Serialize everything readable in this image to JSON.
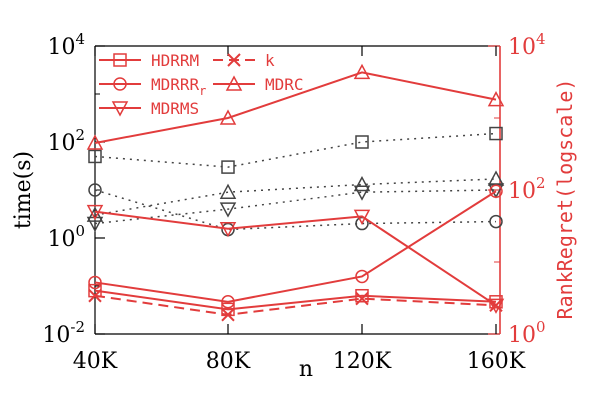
{
  "chart_data": {
    "type": "line",
    "x": [
      "40K",
      "80K",
      "120K",
      "160K"
    ],
    "xlabel": "n",
    "ylabel_left": "time(s)",
    "ylabel_right": "RankRegret(logscale)",
    "yscale_left": "log",
    "yscale_right": "log",
    "ylim_left": [
      0.01,
      10000
    ],
    "ylim_right": [
      1,
      10000
    ],
    "yticks_left": [
      {
        "base": "10",
        "exp": "-2",
        "value": 0.01
      },
      {
        "base": "10",
        "exp": "0",
        "value": 1
      },
      {
        "base": "10",
        "exp": "2",
        "value": 100
      },
      {
        "base": "10",
        "exp": "4",
        "value": 10000
      }
    ],
    "yticks_right": [
      {
        "base": "10",
        "exp": "0",
        "value": 1
      },
      {
        "base": "10",
        "exp": "2",
        "value": 100
      },
      {
        "base": "10",
        "exp": "4",
        "value": 10000
      }
    ],
    "grid": false,
    "legend_position": "top-left",
    "legend": [
      {
        "label": "HDRRM",
        "marker": "square",
        "line": "solid"
      },
      {
        "label": "k",
        "marker": "x",
        "line": "dashed"
      },
      {
        "label": "MDRRR",
        "sub": "r",
        "marker": "circle",
        "line": "solid"
      },
      {
        "label": "MDRC",
        "marker": "triangle-up",
        "line": "solid"
      },
      {
        "label": "MDRMS",
        "marker": "triangle-down",
        "line": "solid"
      }
    ],
    "series_time": [
      {
        "name": "HDRRM",
        "marker": "square",
        "values": [
          50,
          30,
          100,
          150
        ]
      },
      {
        "name": "MDRRR",
        "marker": "circle",
        "values": [
          10,
          1.5,
          2,
          2.2
        ]
      },
      {
        "name": "MDRC",
        "marker": "triangle-up",
        "values": [
          3,
          9,
          13,
          17
        ]
      },
      {
        "name": "MDRMS",
        "marker": "triangle-down",
        "values": [
          2,
          4,
          9,
          10
        ]
      }
    ],
    "series_regret": [
      {
        "name": "HDRRM",
        "marker": "square",
        "line": "solid",
        "values": [
          4,
          2.2,
          3.4,
          2.8
        ]
      },
      {
        "name": "k",
        "marker": "x",
        "line": "dashed",
        "values": [
          3.4,
          1.85,
          3.1,
          2.5
        ]
      },
      {
        "name": "MDRRR",
        "marker": "circle",
        "line": "solid",
        "values": [
          5.2,
          2.8,
          6.3,
          96
        ]
      },
      {
        "name": "MDRC",
        "marker": "triangle-up",
        "line": "solid",
        "values": [
          450,
          1000,
          4300,
          1800
        ]
      },
      {
        "name": "MDRMS",
        "marker": "triangle-down",
        "line": "solid",
        "values": [
          50,
          29,
          43,
          2.5
        ]
      }
    ],
    "colors": {
      "time": "#444444",
      "regret": "#e23c3c",
      "axis": "#000000"
    }
  }
}
